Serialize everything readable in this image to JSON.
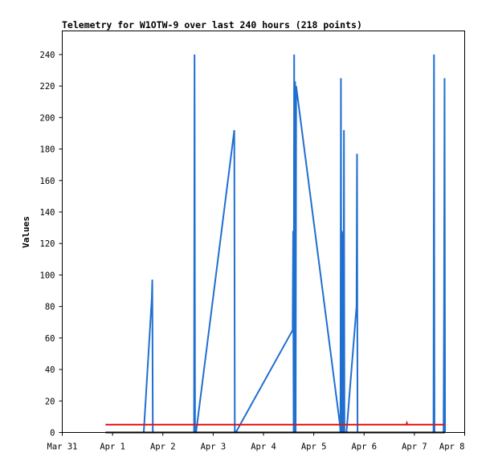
{
  "chart_data": {
    "type": "line",
    "title": "Telemetry for W1OTW-9 over last 240 hours (218 points)",
    "xlabel": "",
    "ylabel": "Values",
    "x_ticks": [
      "Mar 31",
      "Apr 1",
      "Apr 2",
      "Apr 3",
      "Apr 4",
      "Apr 5",
      "Apr 6",
      "Apr 7",
      "Apr 8"
    ],
    "x_range_days": [
      0,
      8
    ],
    "ylim": [
      0,
      255
    ],
    "y_ticks": [
      0,
      20,
      40,
      60,
      80,
      100,
      120,
      140,
      160,
      180,
      200,
      220,
      240
    ],
    "grid": false,
    "colors": {
      "series_1": "#1f6fd0",
      "series_2": "#e01010",
      "series_3": "#000000"
    },
    "series": [
      {
        "x": [
          0.86,
          1.62,
          1.78,
          1.79,
          1.8,
          1.81,
          2.62,
          2.63,
          2.64,
          2.65,
          2.66,
          3.42,
          3.43,
          3.44,
          3.45,
          4.58,
          4.59,
          4.6,
          4.61,
          4.62,
          4.63,
          4.64,
          4.65,
          5.52,
          5.53,
          5.54,
          5.55,
          5.56,
          5.57,
          5.58,
          5.59,
          5.6,
          5.61,
          5.62,
          5.63,
          5.64,
          5.65,
          5.85,
          5.86,
          5.87,
          5.88,
          7.38,
          7.39,
          7.4,
          7.41,
          7.58,
          7.59,
          7.6,
          7.61
        ],
        "y": [
          0,
          0,
          85,
          97,
          0,
          0,
          0,
          240,
          0,
          0,
          0,
          192,
          0,
          0,
          0,
          65,
          128,
          0,
          240,
          0,
          223,
          0,
          220,
          5,
          0,
          225,
          0,
          128,
          0,
          127,
          0,
          192,
          0,
          0,
          0,
          0,
          0,
          80,
          177,
          0,
          0,
          0,
          240,
          0,
          0,
          0,
          80,
          225,
          0
        ]
      },
      {
        "x": [
          0.86,
          6.84,
          6.85,
          6.86,
          7.61
        ],
        "y": [
          5,
          5,
          6,
          5,
          5
        ]
      },
      {
        "x": [
          0.86,
          7.61
        ],
        "y": [
          0,
          0
        ]
      }
    ]
  }
}
